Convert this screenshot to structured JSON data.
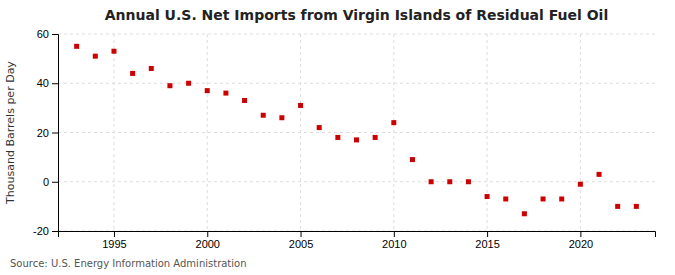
{
  "chart_data": {
    "type": "scatter",
    "title": "Annual U.S. Net Imports from Virgin Islands of Residual Fuel Oil",
    "ylabel": "Thousand Barrels per Day",
    "annotation": "Source: U.S. Energy Information Administration",
    "x": [
      1993,
      1994,
      1995,
      1996,
      1997,
      1998,
      1999,
      2000,
      2001,
      2002,
      2003,
      2004,
      2005,
      2006,
      2007,
      2008,
      2009,
      2010,
      2011,
      2012,
      2013,
      2014,
      2015,
      2016,
      2017,
      2018,
      2019,
      2020,
      2021,
      2022,
      2023
    ],
    "values": [
      55,
      51,
      53,
      44,
      46,
      39,
      40,
      37,
      36,
      33,
      27,
      26,
      31,
      22,
      18,
      17,
      18,
      24,
      9,
      0,
      0,
      0,
      -6,
      -7,
      -13,
      -7,
      -7,
      -1,
      3,
      -10,
      -10
    ],
    "color": "#cc0000",
    "marker": "square",
    "xlim": [
      1992,
      2024
    ],
    "xticks": [
      1995,
      2000,
      2005,
      2010,
      2015,
      2020
    ],
    "ylim": [
      -20,
      60
    ],
    "yticks": [
      -20,
      0,
      20,
      40,
      60
    ],
    "grid": true
  }
}
